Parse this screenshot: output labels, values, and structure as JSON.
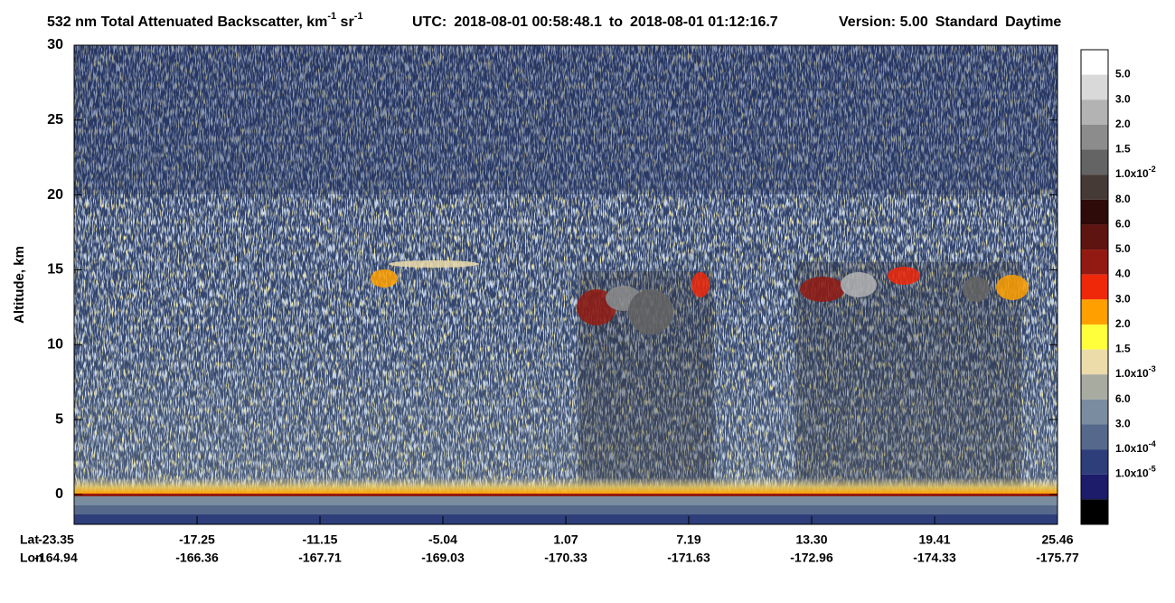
{
  "chart_data": {
    "type": "curtain",
    "title": {
      "text": "532 nm Total Attenuated Backscatter, km",
      "exp1": "-1",
      "unit2": " sr",
      "exp2": "-1"
    },
    "utc": {
      "label": "UTC:",
      "start": "2018-08-01 00:58:48.1",
      "to": "to",
      "end": "2018-08-01 01:12:16.7"
    },
    "version": "Version: 5.00",
    "product": "Standard",
    "daytime": "Daytime",
    "y_label": "Altitude, km",
    "ylim": [
      -2,
      30
    ],
    "yticks": [
      0,
      5,
      10,
      15,
      20,
      25,
      30
    ],
    "lat_label": "Lat",
    "lon_label": "Lon",
    "lat": [
      "-23.35",
      "-17.25",
      "-11.15",
      "-5.04",
      "1.07",
      "7.19",
      "13.30",
      "19.41",
      "25.46"
    ],
    "lon": [
      "-164.94",
      "-166.36",
      "-167.71",
      "-169.03",
      "-170.33",
      "-171.63",
      "-172.96",
      "-174.33",
      "-175.77"
    ],
    "colorbar": [
      {
        "color": "#ffffff",
        "label": "5.0"
      },
      {
        "color": "#d9d9d9",
        "label": "3.0"
      },
      {
        "color": "#b3b3b3",
        "label": "2.0"
      },
      {
        "color": "#8c8c8c",
        "label": "1.5"
      },
      {
        "color": "#646464",
        "label": "1.0x10",
        "exp": "-2"
      },
      {
        "color": "#463a36",
        "label": "8.0"
      },
      {
        "color": "#2e0a08",
        "label": "6.0"
      },
      {
        "color": "#5e1410",
        "label": "5.0"
      },
      {
        "color": "#921a12",
        "label": "4.0"
      },
      {
        "color": "#f0280a",
        "label": "3.0"
      },
      {
        "color": "#ffa000",
        "label": "2.0"
      },
      {
        "color": "#ffff3c",
        "label": "1.5"
      },
      {
        "color": "#ecdcaa",
        "label": "1.0x10",
        "exp": "-3"
      },
      {
        "color": "#a8aca0",
        "label": "6.0"
      },
      {
        "color": "#7a8ca0",
        "label": "3.0"
      },
      {
        "color": "#56698c",
        "label": "1.0x10",
        "exp": "-4"
      },
      {
        "color": "#2e3e7a",
        "label": "1.0x10",
        "exp": "-5"
      },
      {
        "color": "#1c1c6a"
      },
      {
        "color": "#000000"
      }
    ]
  }
}
